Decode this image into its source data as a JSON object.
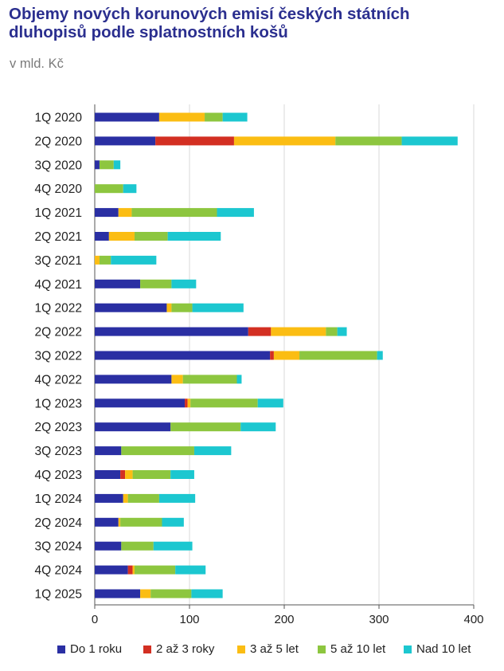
{
  "header": {
    "title": "Objemy nových korunových emisí českých státních dluhopisů podle splatnostních košů",
    "subtitle": "v mld. Kč"
  },
  "colors": {
    "do_1_roku": "#2a2fa3",
    "2_az_3_roky": "#d32f22",
    "3_az_5_let": "#fbbd13",
    "5_az_10_let": "#8dc63f",
    "nad_10_let": "#1cc7d0"
  },
  "chart_data": {
    "type": "bar",
    "orientation": "horizontal",
    "stacked": true,
    "title": "Objemy nových korunových emisí českých státních dluhopisů podle splatnostních košů",
    "subtitle": "v mld. Kč",
    "xlim": [
      0,
      400
    ],
    "xticks": [
      0,
      100,
      200,
      300,
      400
    ],
    "grid": true,
    "legend_position": "bottom",
    "categories": [
      "1Q 2020",
      "2Q 2020",
      "3Q 2020",
      "4Q 2020",
      "1Q 2021",
      "2Q 2021",
      "3Q 2021",
      "4Q 2021",
      "1Q 2022",
      "2Q 2022",
      "3Q 2022",
      "4Q 2022",
      "1Q 2023",
      "2Q 2023",
      "3Q 2023",
      "4Q 2023",
      "1Q 2024",
      "2Q 2024",
      "3Q 2024",
      "4Q 2024",
      "1Q 2025"
    ],
    "series": [
      {
        "name": "Do 1 roku",
        "color": "#2a2fa3",
        "values": [
          68,
          64,
          5,
          0,
          25,
          15,
          0,
          48,
          76,
          162,
          185,
          81,
          95,
          80,
          28,
          27,
          30,
          25,
          28,
          35,
          48
        ]
      },
      {
        "name": "2 až 3 roky",
        "color": "#d32f22",
        "values": [
          0,
          83,
          0,
          0,
          0,
          0,
          0,
          0,
          0,
          24,
          4,
          0,
          3,
          0,
          0,
          5,
          0,
          0,
          0,
          5,
          0
        ]
      },
      {
        "name": "3 až 5 let",
        "color": "#fbbd13",
        "values": [
          48,
          107,
          0,
          0,
          14,
          27,
          5,
          0,
          5,
          58,
          27,
          12,
          3,
          0,
          0,
          8,
          5,
          2,
          0,
          2,
          11
        ]
      },
      {
        "name": "5 až 10 let",
        "color": "#8dc63f",
        "values": [
          19,
          70,
          15,
          30,
          90,
          35,
          12,
          33,
          22,
          12,
          82,
          57,
          71,
          74,
          77,
          40,
          33,
          44,
          34,
          43,
          43
        ]
      },
      {
        "name": "Nad 10 let",
        "color": "#1cc7d0",
        "values": [
          26,
          59,
          7,
          14,
          39,
          56,
          48,
          26,
          54,
          10,
          6,
          5,
          27,
          37,
          39,
          25,
          38,
          23,
          41,
          32,
          33
        ]
      }
    ]
  }
}
